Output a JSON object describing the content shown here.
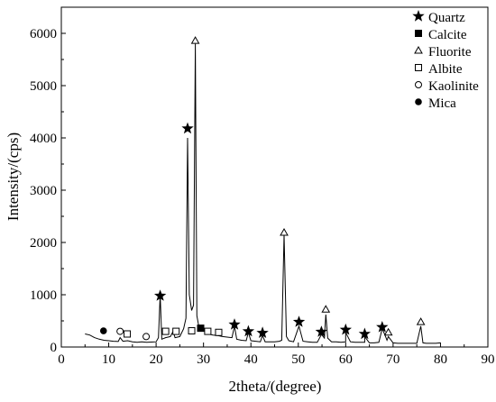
{
  "chart_data": {
    "type": "line",
    "title": "",
    "xlabel": "2theta/(degree)",
    "ylabel": "Intensity/(cps)",
    "xlim": [
      0,
      90
    ],
    "ylim": [
      0,
      6500
    ],
    "xticks": [
      0,
      10,
      20,
      30,
      40,
      50,
      60,
      70,
      80,
      90
    ],
    "yticks": [
      0,
      1000,
      2000,
      3000,
      4000,
      5000,
      6000
    ],
    "grid": false,
    "legend_position": "top-right",
    "line_color": "#000000",
    "series": [
      {
        "x": [
          5,
          6,
          7,
          8,
          9,
          10,
          11,
          12,
          12.4,
          13,
          14,
          15,
          16,
          17,
          18,
          19,
          20,
          20.5,
          20.86,
          21.2,
          22,
          23,
          23.6,
          24,
          25,
          25.8,
          26.3,
          26.64,
          27,
          27.5,
          27.9,
          28.27,
          28.6,
          29,
          29.4,
          30,
          31,
          32,
          33,
          34,
          35,
          36,
          36.54,
          37,
          38,
          39,
          39.47,
          40,
          41,
          42,
          42.45,
          43,
          44,
          45,
          46,
          46.5,
          47.0,
          47.5,
          48,
          49,
          50.14,
          51,
          52,
          53,
          54,
          54.87,
          55.5,
          55.8,
          56.2,
          57,
          58,
          59,
          60,
          60.0,
          61,
          62,
          63,
          64,
          64.0,
          65,
          66,
          67,
          67.7,
          68.2,
          68.7,
          69,
          70,
          71,
          72,
          73,
          74,
          75,
          75.85,
          76.3,
          77,
          78,
          79,
          80
        ],
        "y": [
          250,
          230,
          180,
          150,
          130,
          120,
          110,
          105,
          180,
          110,
          120,
          100,
          90,
          100,
          90,
          95,
          100,
          180,
          1000,
          150,
          180,
          200,
          300,
          180,
          200,
          350,
          550,
          4000,
          1000,
          700,
          800,
          5800,
          600,
          400,
          350,
          320,
          250,
          230,
          220,
          200,
          190,
          180,
          400,
          150,
          130,
          120,
          280,
          120,
          110,
          100,
          220,
          100,
          100,
          100,
          110,
          130,
          2150,
          200,
          120,
          100,
          400,
          110,
          100,
          90,
          90,
          240,
          170,
          620,
          170,
          100,
          100,
          90,
          100,
          280,
          100,
          90,
          90,
          90,
          200,
          80,
          80,
          90,
          350,
          250,
          130,
          200,
          80,
          70,
          70,
          70,
          70,
          70,
          400,
          80,
          70,
          70,
          70,
          80
        ]
      }
    ],
    "phase_markers": [
      {
        "phase": "Quartz",
        "symbol": "star",
        "points": [
          [
            20.86,
            980
          ],
          [
            26.64,
            4180
          ],
          [
            36.54,
            430
          ],
          [
            39.47,
            300
          ],
          [
            42.45,
            270
          ],
          [
            50.14,
            480
          ],
          [
            54.87,
            290
          ],
          [
            60.0,
            330
          ],
          [
            64.0,
            250
          ],
          [
            67.7,
            380
          ]
        ]
      },
      {
        "phase": "Calcite",
        "symbol": "filled-square",
        "points": [
          [
            29.4,
            360
          ]
        ]
      },
      {
        "phase": "Fluorite",
        "symbol": "open-triangle",
        "points": [
          [
            28.27,
            5860
          ],
          [
            47.0,
            2190
          ],
          [
            55.8,
            720
          ],
          [
            69.0,
            280
          ],
          [
            75.85,
            480
          ]
        ]
      },
      {
        "phase": "Albite",
        "symbol": "open-square",
        "points": [
          [
            13.9,
            250
          ],
          [
            22.0,
            300
          ],
          [
            24.2,
            300
          ],
          [
            27.5,
            310
          ],
          [
            30.9,
            300
          ],
          [
            33.2,
            280
          ]
        ]
      },
      {
        "phase": "Kaolinite",
        "symbol": "open-circle",
        "points": [
          [
            12.4,
            300
          ],
          [
            17.9,
            200
          ]
        ]
      },
      {
        "phase": "Mica",
        "symbol": "filled-circle",
        "points": [
          [
            8.9,
            310
          ]
        ]
      }
    ]
  }
}
